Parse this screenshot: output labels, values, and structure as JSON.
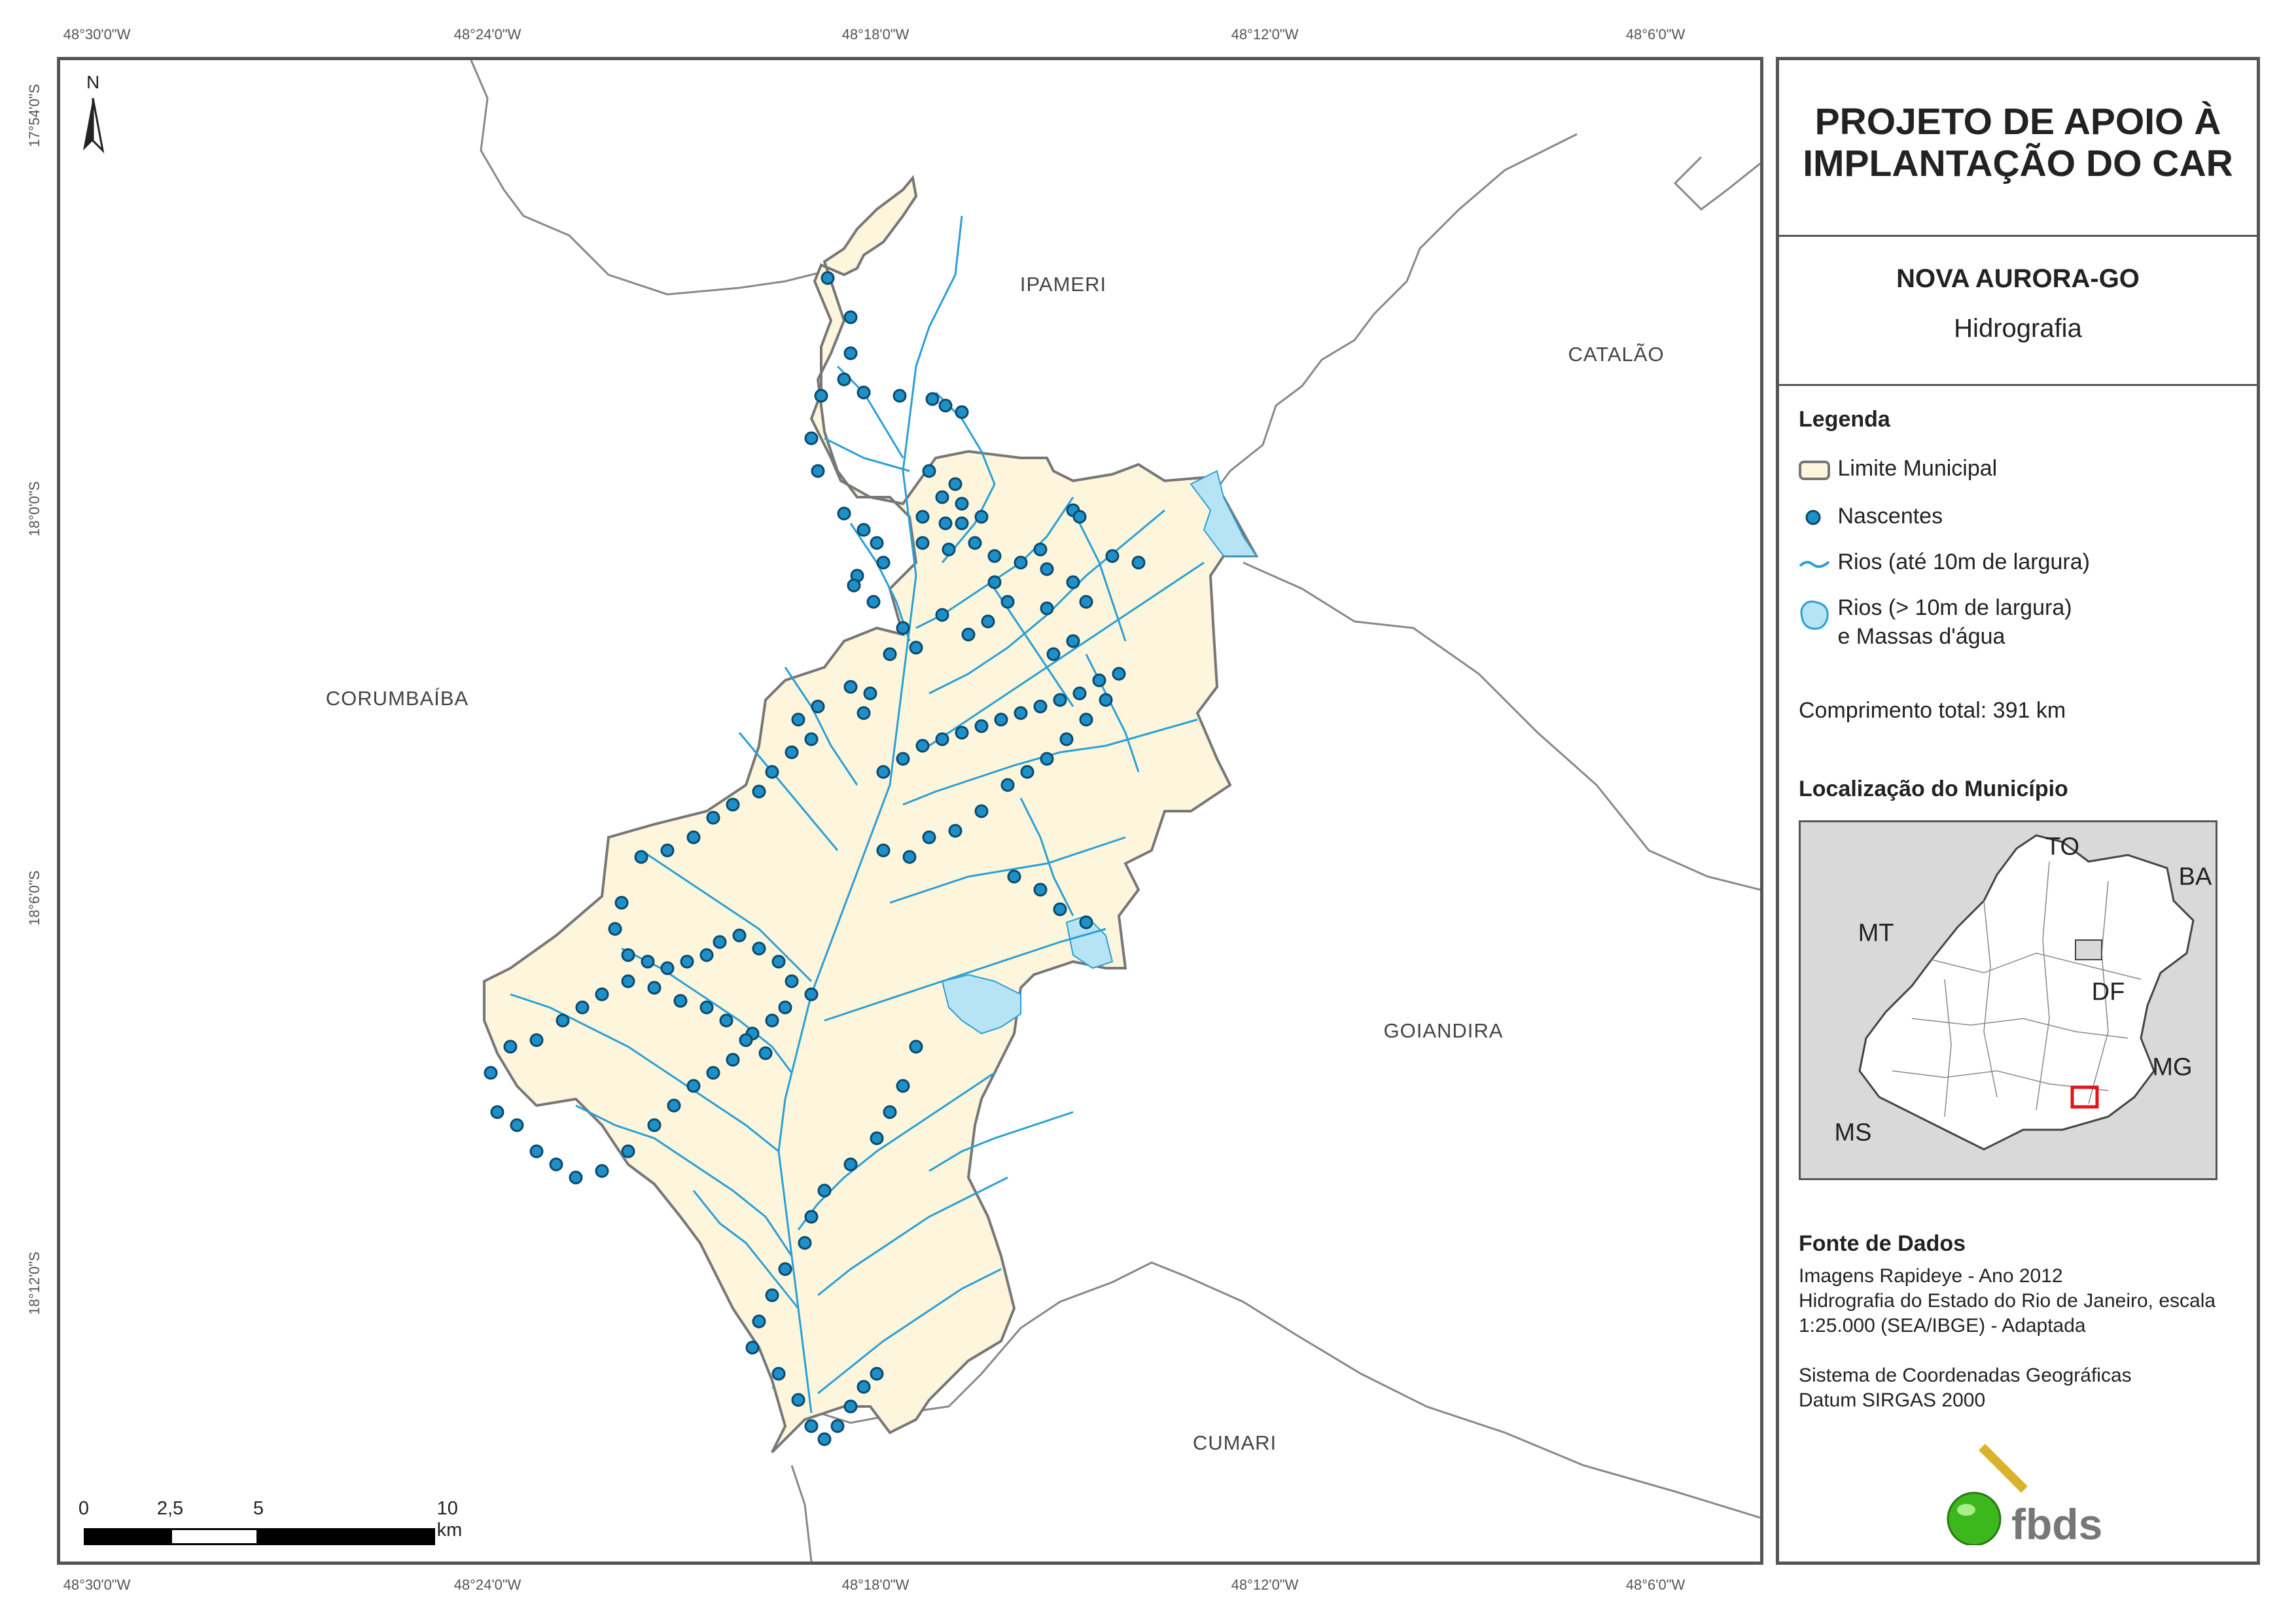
{
  "coords": {
    "top": [
      "48°30'0\"W",
      "48°24'0\"W",
      "48°18'0\"W",
      "48°12'0\"W",
      "48°6'0\"W"
    ],
    "bottom": [
      "48°30'0\"W",
      "48°24'0\"W",
      "48°18'0\"W",
      "48°12'0\"W",
      "48°6'0\"W"
    ],
    "left": [
      "17°54'0\"S",
      "18°0'0\"S",
      "18°6'0\"S",
      "18°12'0\"S"
    ]
  },
  "places": {
    "ipameri": "IPAMERI",
    "catalao": "CATALÃO",
    "corumbaiba": "CORUMBAÍBA",
    "goiandira": "GOIANDIRA",
    "cumari": "CUMARI"
  },
  "north": "N",
  "scalebar": {
    "labels": [
      "0",
      "2,5",
      "5",
      "10 km"
    ]
  },
  "panel": {
    "title": "PROJETO DE APOIO À IMPLANTAÇÃO DO CAR",
    "title_line1": "PROJETO DE APOIO À",
    "title_line2": "IMPLANTAÇÃO DO CAR",
    "municipality": "NOVA AURORA-GO",
    "theme": "Hidrografia"
  },
  "legend": {
    "heading": "Legenda",
    "items": [
      "Limite Municipal",
      "Nascentes",
      "Rios (até 10m de largura)",
      "Rios (> 10m de largura)",
      "e Massas d'água"
    ],
    "total": "Comprimento total: 391 km"
  },
  "location": {
    "heading": "Localização do Município",
    "labels": [
      "TO",
      "BA",
      "MT",
      "DF",
      "MG",
      "MS"
    ]
  },
  "sources": {
    "heading": "Fonte de Dados",
    "lines": [
      "Imagens Rapideye - Ano 2012",
      "Hidrografia do Estado do Rio de Janeiro, escala",
      "1:25.000 (SEA/IBGE) - Adaptada",
      "Sistema de Coordenadas Geográficas",
      "Datum SIRGAS 2000"
    ],
    "logo_text": "fbds"
  },
  "colors": {
    "municipality_fill": "#fdf6dc",
    "border": "#777777",
    "river": "#2b9fd6",
    "water_body": "#b7e4f5",
    "spring": "#1e8fc7",
    "location_bg": "#d9d9d9",
    "highlight": "#e2151b",
    "logo_green": "#3cb81c",
    "logo_gold": "#d9b32e"
  }
}
